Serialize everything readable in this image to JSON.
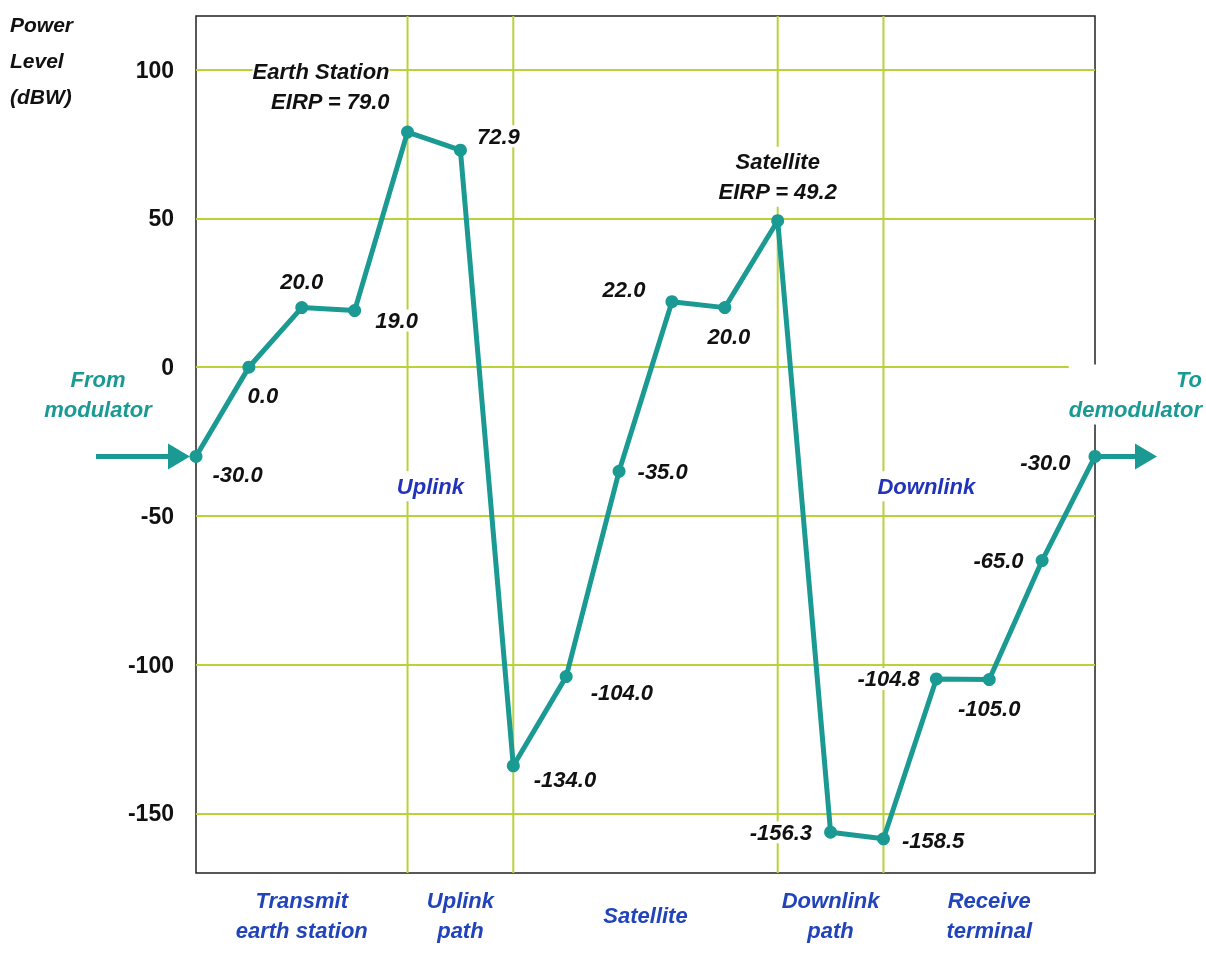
{
  "chart_data": {
    "type": "line",
    "ylabel": "Power\nLevel\n(dBW)",
    "categories": [
      null,
      null,
      null,
      null,
      null,
      null,
      null,
      null,
      null,
      null,
      null,
      null,
      null,
      null,
      null,
      null,
      null,
      null
    ],
    "values": [
      -30.0,
      0.0,
      20.0,
      19.0,
      79.0,
      72.9,
      -134.0,
      -104.0,
      -35.0,
      22.0,
      20.0,
      49.2,
      -156.3,
      -158.5,
      -104.8,
      -105.0,
      -65.0,
      -30.0
    ],
    "value_labels": [
      "-30.0",
      "0.0",
      "20.0",
      "19.0",
      null,
      "72.9",
      "-134.0",
      "-104.0",
      "-35.0",
      "22.0",
      "20.0",
      null,
      "-156.3",
      "-158.5",
      "-104.8",
      "-105.0",
      "-65.0",
      "-30.0"
    ],
    "color": "#1a9a92",
    "marker": "circle",
    "line_style": "solid",
    "grid": true,
    "ylim": [
      -170,
      118
    ],
    "yticks": [
      -150,
      -100,
      -50,
      0,
      50,
      100
    ],
    "annotations": [
      "Earth Station\nEIRP = 79.0",
      "Satellite\nEIRP = 49.2",
      "From\nmodulator",
      "To\ndemodulator",
      "Uplink",
      "Downlink",
      "Transmit\nearth station",
      "Uplink\npath",
      "Satellite",
      "Downlink\npath",
      "Receive\nterminal"
    ]
  }
}
